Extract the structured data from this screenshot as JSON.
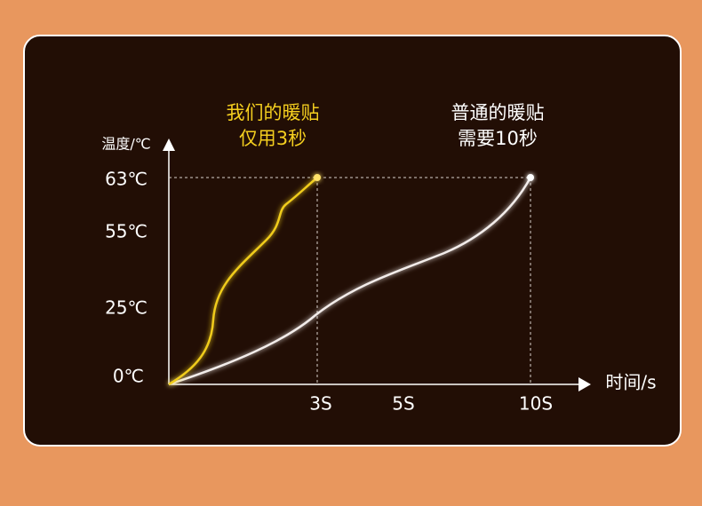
{
  "y_axis": {
    "label": "温度/℃",
    "ticks": [
      "63℃",
      "55℃",
      "25℃",
      "0℃"
    ]
  },
  "x_axis": {
    "label": "时间/s",
    "ticks": [
      "3S",
      "5S",
      "10S"
    ]
  },
  "annotations": [
    {
      "lines": [
        "我们的暖贴",
        "仅用3秒"
      ]
    },
    {
      "lines": [
        "普通的暖贴",
        "需要10秒"
      ]
    }
  ]
}
